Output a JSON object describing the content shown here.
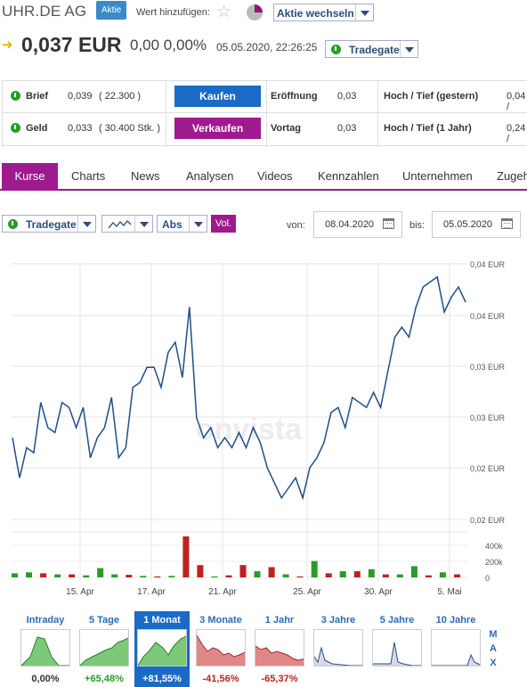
{
  "header": {
    "title": "UHR.DE AG",
    "badge": "Aktie",
    "watchlist_label": "Wert hinzufügen:",
    "switch_label": "Aktie wechseln"
  },
  "price": {
    "last": "0,037 EUR",
    "change": "0,00 0,00%",
    "timestamp": "05.05.2020, 22:26:25",
    "exchange": "Tradegate"
  },
  "quote": {
    "brief_label": "Brief",
    "brief_value": "0,039",
    "brief_size": "( 22.300 )",
    "geld_label": "Geld",
    "geld_value": "0,033",
    "geld_size": "( 30.400 Stk. )",
    "buy_label": "Kaufen",
    "sell_label": "Verkaufen",
    "open_label": "Eröffnung",
    "open_value": "0,03",
    "prev_label": "Vortag",
    "prev_value": "0,03",
    "hl_yesterday_label": "Hoch / Tief (gestern)",
    "hl_yesterday_value": "0,04 /",
    "hl_year_label": "Hoch / Tief (1 Jahr)",
    "hl_year_value": "0,24 /"
  },
  "tabs": [
    "Kurse",
    "Charts",
    "News",
    "Analysen",
    "Videos",
    "Kennzahlen",
    "Unternehmen",
    "Zugeh"
  ],
  "tools": {
    "exchange": "Tradegate",
    "mode": "Abs",
    "vol": "Vol.",
    "from_label": "von:",
    "from_date": "08.04.2020",
    "to_label": "bis:",
    "to_date": "05.05.2020"
  },
  "watermark": "onvista",
  "chart_data": {
    "type": "line",
    "y_tick_labels": [
      "0,04 EUR",
      "0,04 EUR",
      "0,03 EUR",
      "0,03 EUR",
      "0,02 EUR",
      "0,02 EUR"
    ],
    "ylim": [
      0.0185,
      0.0444
    ],
    "volume_tick_labels": [
      "400k",
      "200k",
      "0"
    ],
    "x_tick_labels": [
      "15. Apr",
      "17. Apr",
      "21. Apr",
      "25. Apr",
      "30. Apr",
      "5. Mai"
    ],
    "series": [
      {
        "values": [
          0.027,
          0.023,
          0.026,
          0.0255,
          0.0305,
          0.028,
          0.0275,
          0.0305,
          0.03,
          0.028,
          0.03,
          0.025,
          0.027,
          0.028,
          0.031,
          0.025,
          0.026,
          0.032,
          0.0325,
          0.034,
          0.034,
          0.032,
          0.0355,
          0.0365,
          0.033,
          0.04,
          0.029,
          0.027,
          0.028,
          0.026,
          0.027,
          0.026,
          0.0275,
          0.026,
          0.028,
          0.0265,
          0.024,
          0.0225,
          0.021,
          0.022,
          0.023,
          0.021,
          0.024,
          0.025,
          0.0265,
          0.0295,
          0.03,
          0.028,
          0.031,
          0.0305,
          0.03,
          0.0315,
          0.03,
          0.0335,
          0.037,
          0.038,
          0.037,
          0.04,
          0.042,
          0.0425,
          0.043,
          0.0395,
          0.041,
          0.042,
          0.0405
        ]
      }
    ],
    "volume_colors": [
      "#2a9b2a",
      "#c02020"
    ],
    "volume": [
      {
        "v": 40,
        "c": 0
      },
      {
        "v": 50,
        "c": 0
      },
      {
        "v": 40,
        "c": 1
      },
      {
        "v": 30,
        "c": 0
      },
      {
        "v": 30,
        "c": 1
      },
      {
        "v": 20,
        "c": 0
      },
      {
        "v": 90,
        "c": 0
      },
      {
        "v": 30,
        "c": 0
      },
      {
        "v": 25,
        "c": 1
      },
      {
        "v": 15,
        "c": 0
      },
      {
        "v": 10,
        "c": 1
      },
      {
        "v": 15,
        "c": 0
      },
      {
        "v": 400,
        "c": 1
      },
      {
        "v": 120,
        "c": 1
      },
      {
        "v": 10,
        "c": 0
      },
      {
        "v": 20,
        "c": 1
      },
      {
        "v": 120,
        "c": 1
      },
      {
        "v": 60,
        "c": 0
      },
      {
        "v": 100,
        "c": 1
      },
      {
        "v": 30,
        "c": 0
      },
      {
        "v": 10,
        "c": 1
      },
      {
        "v": 160,
        "c": 0
      },
      {
        "v": 40,
        "c": 1
      },
      {
        "v": 60,
        "c": 0
      },
      {
        "v": 60,
        "c": 1
      },
      {
        "v": 80,
        "c": 0
      },
      {
        "v": 30,
        "c": 1
      },
      {
        "v": 30,
        "c": 0
      },
      {
        "v": 110,
        "c": 0
      },
      {
        "v": 20,
        "c": 1
      },
      {
        "v": 50,
        "c": 0
      },
      {
        "v": 30,
        "c": 1
      }
    ]
  },
  "periods": [
    {
      "label": "Intraday",
      "value": "0,00%",
      "tone": "neutral",
      "kind": "up",
      "active": false
    },
    {
      "label": "5 Tage",
      "value": "+65,48%",
      "tone": "pos",
      "kind": "up",
      "active": false
    },
    {
      "label": "1 Monat",
      "value": "+81,55%",
      "tone": "pos",
      "kind": "up",
      "active": true
    },
    {
      "label": "3 Monate",
      "value": "-41,56%",
      "tone": "neg",
      "kind": "down",
      "active": false
    },
    {
      "label": "1 Jahr",
      "value": "-65,37%",
      "tone": "neg",
      "kind": "down",
      "active": false
    },
    {
      "label": "3 Jahre",
      "value": "",
      "tone": "neutral",
      "kind": "flat",
      "active": false
    },
    {
      "label": "5 Jahre",
      "value": "",
      "tone": "neutral",
      "kind": "flat",
      "active": false
    },
    {
      "label": "10 Jahre",
      "value": "",
      "tone": "neutral",
      "kind": "flat",
      "active": false
    }
  ],
  "max_label": [
    "M",
    "A",
    "X"
  ]
}
